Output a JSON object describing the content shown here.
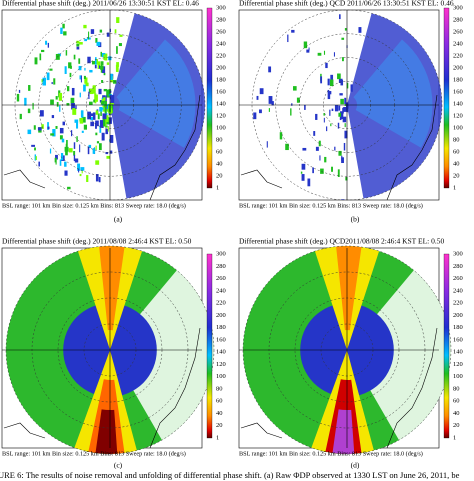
{
  "panels": [
    {
      "title": "Differential phase shift (deg.)  2011/06/26  13:30:51 KST  EL: 0.46",
      "footer": "BSL range: 101 km Bin size: 0.125 km Bins: 813 Sweep rate: 18.0 (deg/s)",
      "label": "(a)",
      "colorbar": [
        "300",
        "280",
        "260",
        "240",
        "220",
        "200",
        "180",
        "160",
        "140",
        "120",
        "100",
        "80",
        "60",
        "40",
        "20",
        "1"
      ]
    },
    {
      "title": "Differential phase shift (deg.) QCD 2011/06/26  13:30:51 KST  EL: 0.46",
      "footer": "BSL range: 101 km Bin size: 0.125 km Bins: 813 Sweep rate: 18.0 (deg/s)",
      "label": "(b)",
      "colorbar": [
        "300",
        "280",
        "260",
        "240",
        "220",
        "200",
        "180",
        "160",
        "140",
        "120",
        "100",
        "80",
        "60",
        "40",
        "20",
        "1"
      ]
    },
    {
      "title": "Differential phase shift (deg.) 2011/08/08  2:46:4 KST  EL: 0.50",
      "footer": "BSL range: 101 km Bin size: 0.125 km Bins: 813 Sweep rate: 18.0 (deg/s)",
      "label": "(c)",
      "colorbar": [
        "300",
        "280",
        "260",
        "240",
        "220",
        "200",
        "180",
        "160",
        "140",
        "120",
        "100",
        "80",
        "60",
        "40",
        "20",
        "1"
      ]
    },
    {
      "title": "Differential phase shift (deg.) QCD2011/08/08  2:46:4 KST  EL: 0.50",
      "footer": "BSL range: 101 km Bin size: 0.125 km Bins: 813 Sweep rate: 18.0 (deg/s)",
      "label": "(d)",
      "colorbar": [
        "300",
        "280",
        "260",
        "240",
        "220",
        "200",
        "180",
        "160",
        "140",
        "120",
        "100",
        "80",
        "60",
        "40",
        "20",
        "1"
      ]
    }
  ],
  "caption": "URE 6: The results of noise removal and unfolding of differential phase shift. (a) Raw ΦDP observed at 1330 LST on June 26, 2011, be"
}
